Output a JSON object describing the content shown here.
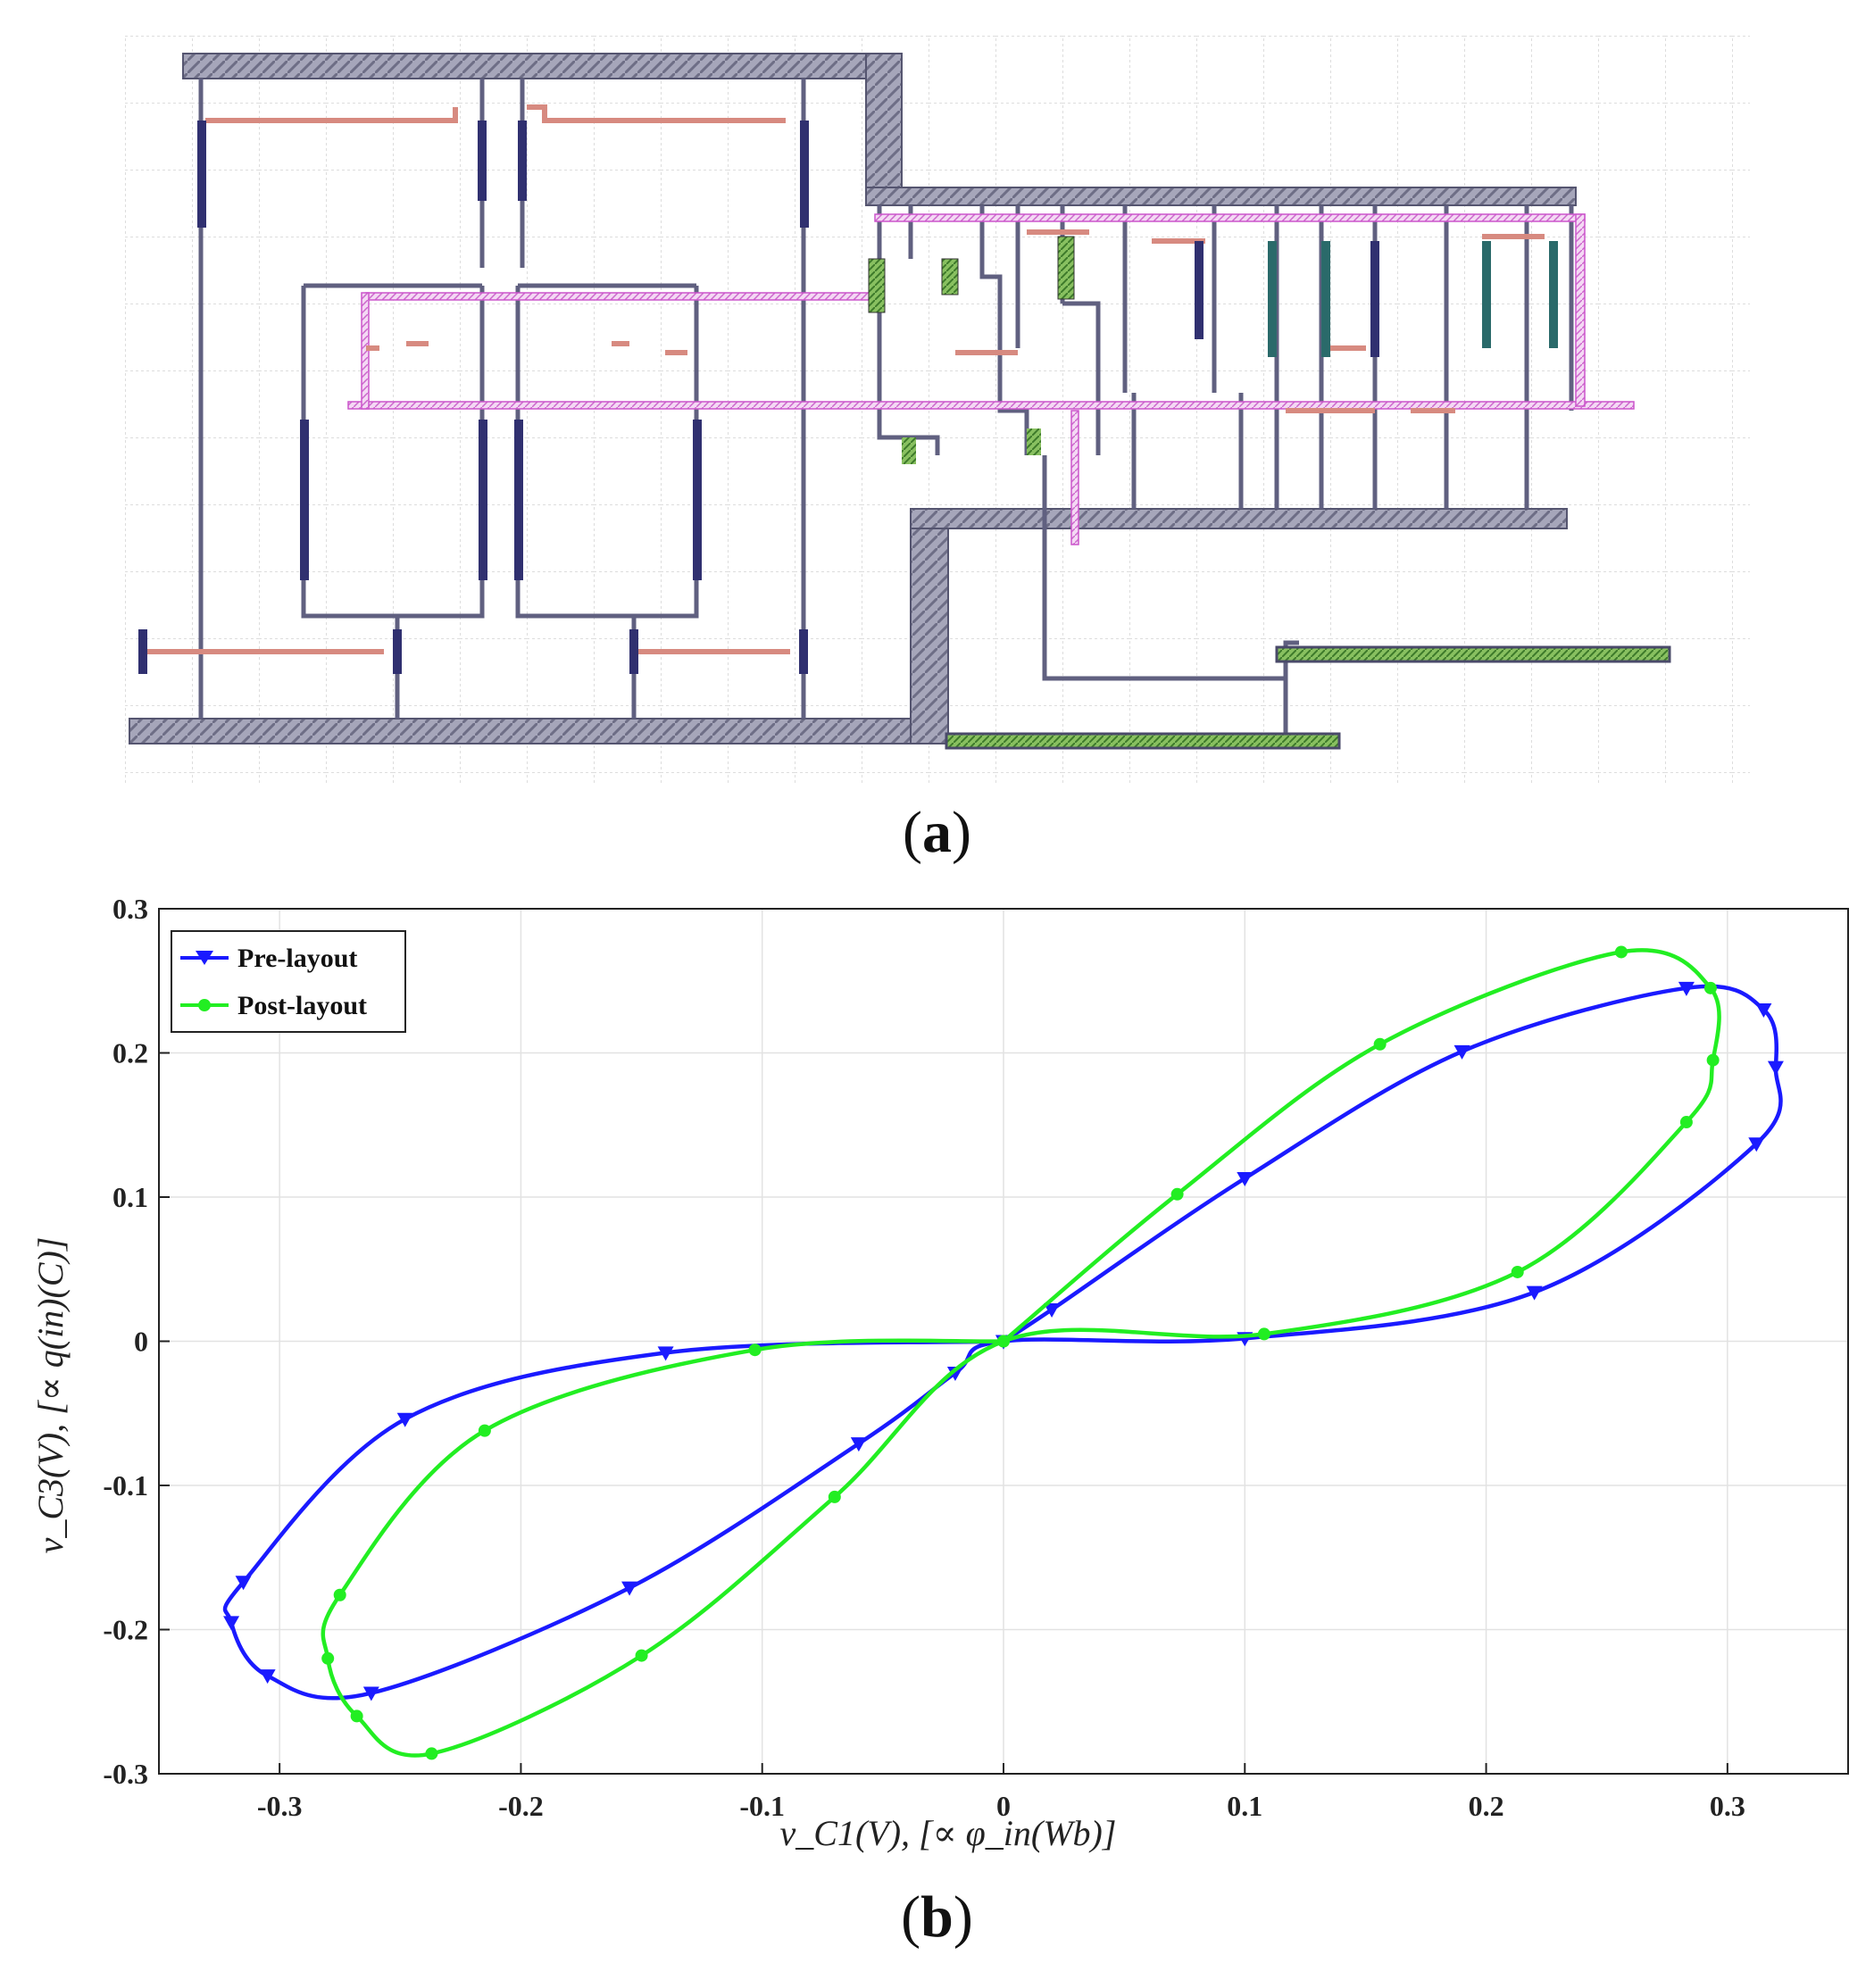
{
  "captions": {
    "a": "a",
    "b": "b"
  },
  "colors": {
    "pre_layout": "#1a1aff",
    "post_layout": "#22ee22",
    "layout_rail": "#8c8ca4",
    "layout_poly": "#d78a80",
    "layout_metal2": "#d070d0",
    "layout_diffusion": "#5aa040",
    "grid": "#dcdcdc"
  },
  "chart_data": {
    "type": "line",
    "xlabel": "v_C1(V), [∝ φ_in(Wb)]",
    "ylabel": "v_C3(V), [∝ q(in)(C)]",
    "xlim": [
      -0.35,
      0.35
    ],
    "ylim": [
      -0.3,
      0.3
    ],
    "x_ticks": [
      "-0.3",
      "-0.2",
      "-0.1",
      "0",
      "0.1",
      "0.2",
      "0.3"
    ],
    "y_ticks": [
      "0.3",
      "0.2",
      "0.1",
      "0",
      "-0.1",
      "-0.2",
      "-0.3"
    ],
    "grid": true,
    "legend_position": "top-left",
    "series": [
      {
        "name": "Pre-layout",
        "marker": "triangle-down",
        "color": "#1a1aff",
        "x": [
          0,
          0.02,
          0.1,
          0.19,
          0.283,
          0.315,
          0.32,
          0.312,
          0.22,
          0.1,
          0,
          -0.02,
          -0.06,
          -0.155,
          -0.262,
          -0.305,
          -0.32,
          -0.315,
          -0.248,
          -0.14,
          0
        ],
        "y": [
          0,
          0.022,
          0.113,
          0.201,
          0.245,
          0.23,
          0.19,
          0.137,
          0.034,
          0.002,
          0,
          -0.022,
          -0.071,
          -0.171,
          -0.244,
          -0.232,
          -0.195,
          -0.167,
          -0.054,
          -0.008,
          0
        ]
      },
      {
        "name": "Post-layout",
        "marker": "circle",
        "color": "#22ee22",
        "x": [
          0,
          0.072,
          0.156,
          0.256,
          0.293,
          0.294,
          0.283,
          0.213,
          0.108,
          0,
          -0.07,
          -0.15,
          -0.237,
          -0.268,
          -0.28,
          -0.275,
          -0.215,
          -0.103,
          0
        ],
        "y": [
          0,
          0.102,
          0.206,
          0.27,
          0.245,
          0.195,
          0.152,
          0.048,
          0.005,
          0,
          -0.108,
          -0.218,
          -0.286,
          -0.26,
          -0.22,
          -0.176,
          -0.062,
          -0.006,
          0
        ]
      }
    ]
  }
}
